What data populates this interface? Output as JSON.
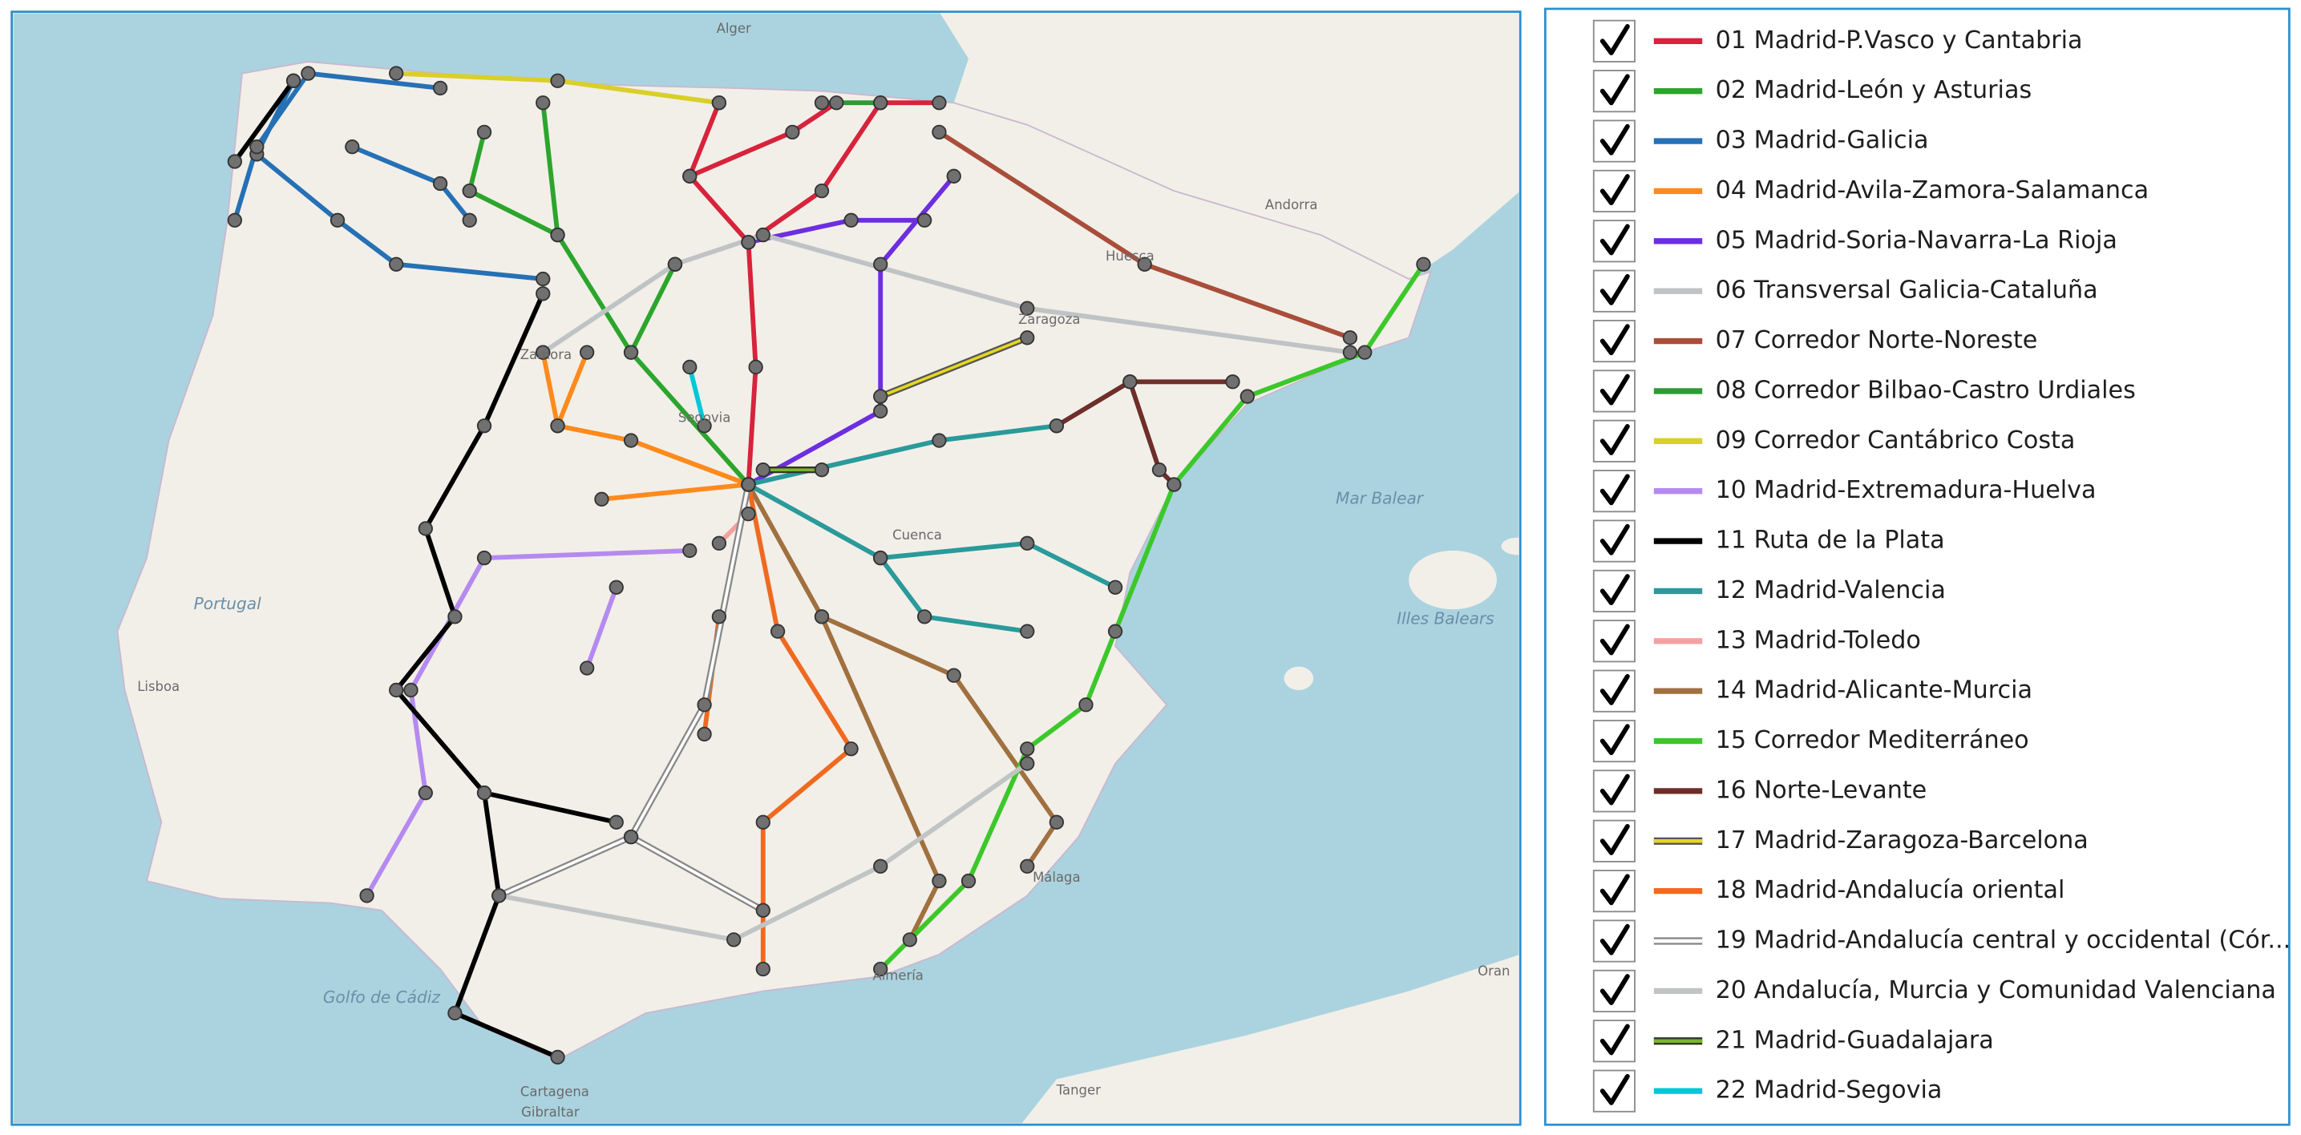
{
  "map": {
    "labels": [
      "Portugal",
      "Andorra",
      "Mar Balear",
      "Illes Balears",
      "Golfo de Cádiz",
      "Lisboa",
      "Zaragoza",
      "Cuenca",
      "Segovia",
      "Huesca",
      "Zamora",
      "Almería",
      "Málaga",
      "Cartagena",
      "Gibraltar",
      "Tanger",
      "Oran",
      "Alger"
    ]
  },
  "legend": {
    "items": [
      {
        "label": "01 Madrid-P.Vasco y Cantabria",
        "color": "#d7233b"
      },
      {
        "label": "02 Madrid-León y Asturias",
        "color": "#2ca52c"
      },
      {
        "label": "03 Madrid-Galicia",
        "color": "#2670b5"
      },
      {
        "label": "04 Madrid-Avila-Zamora-Salamanca",
        "color": "#ff8a1c"
      },
      {
        "label": "05 Madrid-Soria-Navarra-La Rioja",
        "color": "#6d2ee0"
      },
      {
        "label": "06 Transversal Galicia-Cataluña",
        "color": "#bfc3c5"
      },
      {
        "label": "07 Corredor Norte-Noreste",
        "color": "#a94e3a"
      },
      {
        "label": "08 Corredor Bilbao-Castro Urdiales",
        "color": "#2e9a35"
      },
      {
        "label": "09 Corredor Cantábrico Costa",
        "color": "#d9cf2a"
      },
      {
        "label": "10 Madrid-Extremadura-Huelva",
        "color": "#b58af0"
      },
      {
        "label": "11 Ruta de la Plata",
        "color": "#000000"
      },
      {
        "label": "12 Madrid-Valencia",
        "color": "#2a9a9a"
      },
      {
        "label": "13 Madrid-Toledo",
        "color": "#f5a0a0"
      },
      {
        "label": "14 Madrid-Alicante-Murcia",
        "color": "#a0703f"
      },
      {
        "label": "15 Corredor Mediterráneo",
        "color": "#3cc82a"
      },
      {
        "label": "16 Norte-Levante",
        "color": "#6e2e2a"
      },
      {
        "label": "17 Madrid-Zaragoza-Barcelona",
        "color": "#e5d820",
        "outline": "#555555"
      },
      {
        "label": "18 Madrid-Andalucía oriental",
        "color": "#ef6a20"
      },
      {
        "label": "19 Madrid-Andalucía central y occidental (Cór...",
        "color": "#ffffff",
        "outline": "#888888"
      },
      {
        "label": "20 Andalucía, Murcia y Comunidad Valenciana",
        "color": "#c0c4c4"
      },
      {
        "label": "21 Madrid-Guadalajara",
        "color": "#79b52a",
        "outline": "#333333"
      },
      {
        "label": "22 Madrid-Segovia",
        "color": "#00c8d8"
      }
    ]
  }
}
